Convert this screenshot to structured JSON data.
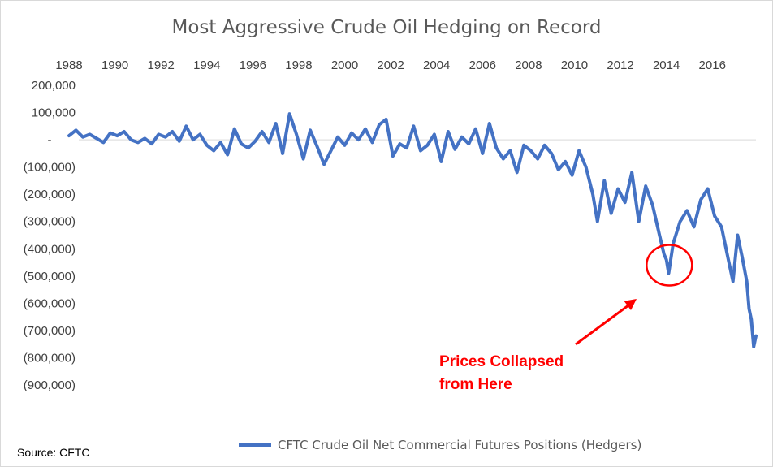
{
  "chart_data": {
    "type": "line",
    "title": "Most Aggressive Crude Oil Hedging on Record",
    "x_ticks": [
      "1988",
      "1990",
      "1992",
      "1994",
      "1996",
      "1998",
      "2000",
      "2002",
      "2004",
      "2006",
      "2008",
      "2010",
      "2012",
      "2014",
      "2016"
    ],
    "y_ticks": [
      "200,000",
      "100,000",
      "-",
      "(100,000)",
      "(200,000)",
      "(300,000)",
      "(400,000)",
      "(500,000)",
      "(600,000)",
      "(700,000)",
      "(800,000)",
      "(900,000)"
    ],
    "xlim": [
      1988,
      2017.9
    ],
    "ylim": [
      -900000,
      200000
    ],
    "grid": false,
    "legend_position": "bottom",
    "series": [
      {
        "name": "CFTC Crude Oil Net Commercial Futures Positions (Hedgers)",
        "color": "#4472c4",
        "x": [
          1988.0,
          1988.3,
          1988.6,
          1988.9,
          1989.2,
          1989.5,
          1989.8,
          1990.1,
          1990.4,
          1990.7,
          1991.0,
          1991.3,
          1991.6,
          1991.9,
          1992.2,
          1992.5,
          1992.8,
          1993.1,
          1993.4,
          1993.7,
          1994.0,
          1994.3,
          1994.6,
          1994.9,
          1995.2,
          1995.5,
          1995.8,
          1996.1,
          1996.4,
          1996.7,
          1997.0,
          1997.3,
          1997.6,
          1997.9,
          1998.2,
          1998.5,
          1998.8,
          1999.1,
          1999.4,
          1999.7,
          2000.0,
          2000.3,
          2000.6,
          2000.9,
          2001.2,
          2001.5,
          2001.8,
          2002.1,
          2002.4,
          2002.7,
          2003.0,
          2003.3,
          2003.6,
          2003.9,
          2004.2,
          2004.5,
          2004.8,
          2005.1,
          2005.4,
          2005.7,
          2006.0,
          2006.3,
          2006.6,
          2006.9,
          2007.2,
          2007.5,
          2007.8,
          2008.1,
          2008.4,
          2008.7,
          2009.0,
          2009.3,
          2009.6,
          2009.9,
          2010.2,
          2010.5,
          2010.8,
          2011.0,
          2011.3,
          2011.6,
          2011.9,
          2012.2,
          2012.5,
          2012.8,
          2013.1,
          2013.4,
          2013.7,
          2013.9,
          2014.0,
          2014.1,
          2014.3,
          2014.6,
          2014.9,
          2015.2,
          2015.5,
          2015.8,
          2016.1,
          2016.4,
          2016.7,
          2016.9,
          2017.1,
          2017.3,
          2017.5,
          2017.6,
          2017.7,
          2017.8,
          2017.9
        ],
        "values": [
          15000,
          35000,
          10000,
          20000,
          5000,
          -10000,
          25000,
          15000,
          30000,
          0,
          -10000,
          5000,
          -15000,
          20000,
          10000,
          30000,
          -5000,
          50000,
          0,
          20000,
          -20000,
          -40000,
          -10000,
          -55000,
          40000,
          -15000,
          -30000,
          -5000,
          30000,
          -10000,
          60000,
          -50000,
          95000,
          20000,
          -70000,
          35000,
          -25000,
          -90000,
          -40000,
          10000,
          -20000,
          25000,
          0,
          40000,
          -10000,
          55000,
          75000,
          -60000,
          -15000,
          -30000,
          50000,
          -40000,
          -20000,
          20000,
          -80000,
          30000,
          -35000,
          10000,
          -15000,
          40000,
          -50000,
          60000,
          -30000,
          -70000,
          -40000,
          -120000,
          -20000,
          -40000,
          -70000,
          -20000,
          -50000,
          -110000,
          -80000,
          -130000,
          -40000,
          -100000,
          -200000,
          -300000,
          -150000,
          -270000,
          -180000,
          -230000,
          -120000,
          -300000,
          -170000,
          -240000,
          -350000,
          -420000,
          -440000,
          -490000,
          -380000,
          -300000,
          -260000,
          -320000,
          -220000,
          -180000,
          -280000,
          -320000,
          -440000,
          -520000,
          -350000,
          -430000,
          -520000,
          -620000,
          -660000,
          -760000,
          -720000
        ]
      }
    ],
    "annotation": {
      "line1": "Prices Collapsed",
      "line2": "from Here",
      "x": 2014.2,
      "y": -490000,
      "color": "#ff0000"
    }
  },
  "source": "Source: CFTC"
}
